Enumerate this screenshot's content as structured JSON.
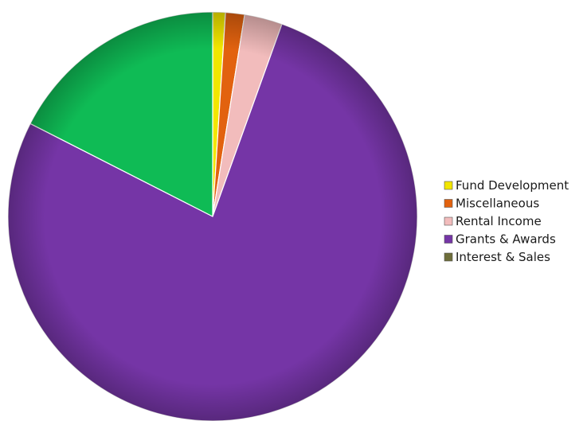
{
  "chart_data": {
    "type": "pie",
    "title": "",
    "legend_position": "right",
    "slices": [
      {
        "name": "Fund Development",
        "value": 1.0,
        "color": "#f2e600"
      },
      {
        "name": "Miscellaneous",
        "value": 1.5,
        "color": "#e2620f"
      },
      {
        "name": "Rental Income",
        "value": 3.0,
        "color": "#f2bcbc"
      },
      {
        "name": "Grants & Awards",
        "value": 77.0,
        "color": "#7535a6"
      },
      {
        "name": "Interest & Sales",
        "value": 17.5,
        "color": "#0fbb55"
      }
    ],
    "legend_swatch_colors": [
      "#f2e600",
      "#e2620f",
      "#f2bcbc",
      "#7535a6",
      "#6e6e3a"
    ]
  }
}
